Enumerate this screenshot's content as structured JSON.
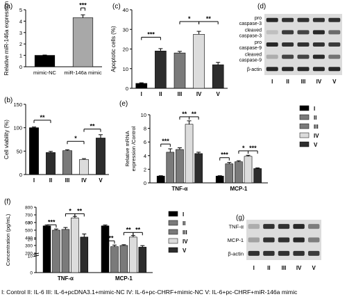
{
  "colors": {
    "black": "#000000",
    "dark": "#2d2d2d",
    "mid": "#7a7a7a",
    "light": "#bdbdbd",
    "lighter": "#dcdcdc",
    "mimic": "#a8a8a8",
    "blot_bg": "#dcdcdc",
    "band": "#1e1e1e"
  },
  "chart_data": [
    {
      "panel": "(a)",
      "type": "bar",
      "categories": [
        "mimic-NC",
        "miR-146a mimic"
      ],
      "values": [
        1.0,
        4.3
      ],
      "errors": [
        0.03,
        0.25
      ],
      "ylabel": "Relative miR-146a expression",
      "ylim": [
        0,
        5
      ],
      "yticks": [
        "0",
        "1",
        "2",
        "3",
        "4",
        "5"
      ],
      "significance": [
        {
          "label": "***"
        }
      ]
    },
    {
      "panel": "(b)",
      "type": "bar",
      "categories": [
        "I",
        "II",
        "III",
        "IV",
        "V"
      ],
      "values": [
        100,
        47,
        51,
        32,
        78
      ],
      "errors": [
        1.5,
        2.5,
        2,
        2,
        7
      ],
      "ylabel": "Cell viability (%)",
      "ylim": [
        0,
        150
      ],
      "yticks": [
        "0",
        "50",
        "100",
        "150"
      ],
      "significance": [
        {
          "label": "**"
        },
        {
          "label": "*"
        },
        {
          "label": "**"
        }
      ]
    },
    {
      "panel": "(c)",
      "type": "bar",
      "categories": [
        "I",
        "II",
        "III",
        "IV",
        "V"
      ],
      "values": [
        2.5,
        19,
        18,
        27.5,
        12
      ],
      "errors": [
        0.3,
        1.2,
        0.8,
        1.5,
        1.2
      ],
      "ylabel": "Apoptotic cells (%)",
      "ylim": [
        0,
        40
      ],
      "yticks": [
        "0",
        "10",
        "20",
        "30",
        "40"
      ],
      "significance": [
        {
          "label": "***"
        },
        {
          "label": "*"
        },
        {
          "label": "**"
        }
      ]
    },
    {
      "panel": "(d)",
      "type": "blot",
      "rows": [
        "pro caspase-3",
        "cleaved caspase-3",
        "pro caspase-9",
        "cleaved caspase-9",
        "β-actin"
      ],
      "lanes": [
        "I",
        "II",
        "III",
        "IV",
        "V"
      ]
    },
    {
      "panel": "(e)",
      "type": "bar",
      "groups": [
        "TNF-α",
        "MCP-1"
      ],
      "series": [
        {
          "name": "I",
          "values": [
            1.0,
            1.0
          ],
          "errors": [
            0.05,
            0.05
          ]
        },
        {
          "name": "II",
          "values": [
            4.5,
            2.8
          ],
          "errors": [
            0.5,
            0.2
          ]
        },
        {
          "name": "III",
          "values": [
            4.9,
            3.1
          ],
          "errors": [
            0.25,
            0.15
          ]
        },
        {
          "name": "IV",
          "values": [
            8.6,
            3.9
          ],
          "errors": [
            0.5,
            0.15
          ]
        },
        {
          "name": "V",
          "values": [
            4.3,
            2.1
          ],
          "errors": [
            0.2,
            0.1
          ]
        }
      ],
      "ylabel": "Relative mRNA expression /Control",
      "ylim": [
        0,
        10
      ],
      "yticks": [
        "0",
        "2",
        "4",
        "6",
        "8",
        "10"
      ],
      "significance": [
        {
          "label": "***"
        },
        {
          "label": "**"
        },
        {
          "label": "**"
        },
        {
          "label": "***"
        },
        {
          "label": "*"
        },
        {
          "label": "***"
        }
      ]
    },
    {
      "panel": "(f)",
      "type": "bar",
      "groups": [
        "TNF-α",
        "MCP-1"
      ],
      "series": [
        {
          "name": "I",
          "values": [
            28,
            28
          ],
          "errors": [
            0.5,
            0.5
          ]
        },
        {
          "name": "II",
          "values": [
            500,
            285
          ],
          "errors": [
            15,
            20
          ]
        },
        {
          "name": "III",
          "values": [
            510,
            300
          ],
          "errors": [
            25,
            10
          ]
        },
        {
          "name": "IV",
          "values": [
            660,
            410
          ],
          "errors": [
            20,
            20
          ]
        },
        {
          "name": "V",
          "values": [
            410,
            278
          ],
          "errors": [
            40,
            20
          ]
        }
      ],
      "ylabel": "Concentration (pg/mL)",
      "axis_break": {
        "low": [
          0,
          30
        ],
        "high": [
          200,
          800
        ]
      },
      "yticks": [
        "0",
        "10",
        "20",
        "30",
        "200",
        "300",
        "400",
        "500",
        "600",
        "700",
        "800"
      ],
      "significance": [
        {
          "label": "***"
        },
        {
          "label": "*"
        },
        {
          "label": "**"
        },
        {
          "label": "***"
        },
        {
          "label": "**"
        },
        {
          "label": "**"
        }
      ]
    },
    {
      "panel": "(g)",
      "type": "blot",
      "rows": [
        "TNF-α",
        "MCP-1",
        "β-actin"
      ],
      "lanes": [
        "I",
        "II",
        "III",
        "IV",
        "V"
      ]
    }
  ],
  "caption": "I: Control   II: IL-6   III: IL-6+pcDNA3.1+mimic-NC   IV: IL-6+pc-CHRF+mimic-NC   V: IL-6+pc-CHRF+miR-146a mimic"
}
